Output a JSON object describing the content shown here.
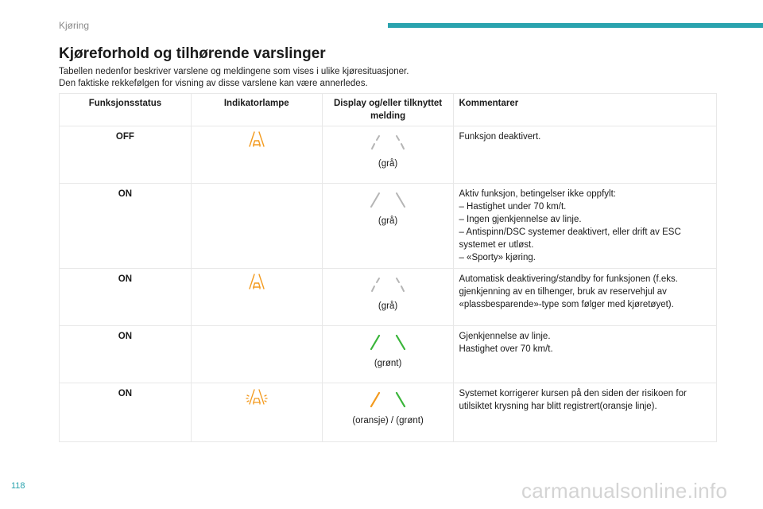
{
  "header": {
    "section": "Kjøring"
  },
  "title": "Kjøreforhold og tilhørende varslinger",
  "intro": {
    "line1": "Tabellen nedenfor beskriver varslene og meldingene som vises i ulike kjøresituasjoner.",
    "line2": "Den faktiske rekkefølgen for visning av disse varslene kan være annerledes."
  },
  "table": {
    "headers": {
      "status": "Funksjonsstatus",
      "lamp": "Indikatorlampe",
      "display": "Display og/eller tilknyttet melding",
      "comment": "Kommentarer"
    },
    "rows": [
      {
        "status": "OFF",
        "caption": "(grå)",
        "comment": [
          " Funksjon deaktivert."
        ]
      },
      {
        "status": "ON",
        "caption": "(grå)",
        "comment": [
          "Aktiv funksjon, betingelser ikke oppfylt:",
          "–  Hastighet under 70 km/t.",
          "–  Ingen gjenkjennelse av linje.",
          "–  Antispinn/DSC systemer deaktivert, eller drift av ESC",
          "systemet er utløst.",
          "–  «Sporty» kjøring."
        ]
      },
      {
        "status": "ON",
        "caption": "(grå)",
        "comment": [
          "Automatisk deaktivering/standby for funksjonen (f.eks.",
          "gjenkjenning av en tilhenger, bruk av reservehjul av",
          "«plassbesparende»-type som følger med kjøretøyet)."
        ]
      },
      {
        "status": "ON",
        "caption": "(grønt)",
        "comment": [
          "Gjenkjennelse av linje.",
          "Hastighet over 70 km/t."
        ]
      },
      {
        "status": "ON",
        "caption": "(oransje) / (grønt)",
        "comment": [
          "Systemet korrigerer kursen på den siden der risikoen for",
          "utilsiktet krysning har blitt registrert(oransje linje)."
        ]
      }
    ]
  },
  "footer": {
    "page": "118",
    "watermark": "carmanualsonline.info"
  },
  "colors": {
    "accent": "#2aa3ae",
    "orange": "#f39a1e",
    "green": "#3ab53a",
    "gray": "#b5b5b5"
  },
  "icons": {
    "lane_warning": "lane-warning-icon",
    "lane_markings": "lane-markings-icon"
  }
}
